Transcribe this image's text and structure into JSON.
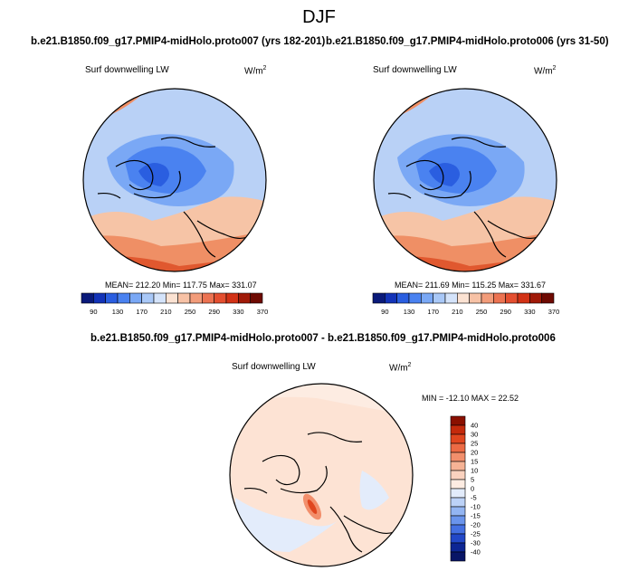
{
  "figure": {
    "title": "DJF"
  },
  "panel_left": {
    "title": "b.e21.B1850.f09_g17.PMIP4-midHolo.proto007 (yrs 182-201)",
    "variable": "Surf downwelling LW",
    "units": "W/m",
    "units_sup": "2",
    "stats": "MEAN= 212.20  Min= 117.75  Max= 331.07"
  },
  "panel_right": {
    "title": "b.e21.B1850.f09_g17.PMIP4-midHolo.proto006 (yrs 31-50)",
    "variable": "Surf downwelling LW",
    "units": "W/m",
    "units_sup": "2",
    "stats": "MEAN= 211.69  Min= 115.25  Max= 331.67"
  },
  "panel_diff": {
    "title": "b.e21.B1850.f09_g17.PMIP4-midHolo.proto007 - b.e21.B1850.f09_g17.PMIP4-midHolo.proto006",
    "variable": "Surf downwelling LW",
    "units": "W/m",
    "units_sup": "2",
    "stats": "MIN = -12.10 MAX =  22.52"
  },
  "colorbar_horizontal": {
    "labels": [
      "90",
      "130",
      "170",
      "210",
      "250",
      "290",
      "330",
      "370"
    ],
    "colors": [
      "#0a1a7a",
      "#1333b8",
      "#2a5ee0",
      "#4a82f0",
      "#7aa8f5",
      "#a9c8f7",
      "#d4e3fa",
      "#fbe2d2",
      "#f7c2a6",
      "#f29c7a",
      "#ec7352",
      "#e44f30",
      "#d23216",
      "#a01a08",
      "#6e0a02"
    ]
  },
  "colorbar_vertical": {
    "labels": [
      "40",
      "30",
      "25",
      "20",
      "15",
      "10",
      "5",
      "0",
      "-5",
      "-10",
      "-15",
      "-20",
      "-25",
      "-30",
      "-40"
    ],
    "colors": [
      "#8a1000",
      "#c42a0c",
      "#e0461f",
      "#ec6a44",
      "#f28f6c",
      "#f6b395",
      "#fad2bf",
      "#fdece2",
      "#e3ecfb",
      "#bcd2f7",
      "#93b5f2",
      "#6a94ec",
      "#4470e2",
      "#2248c8",
      "#0d2694",
      "#081566"
    ]
  }
}
